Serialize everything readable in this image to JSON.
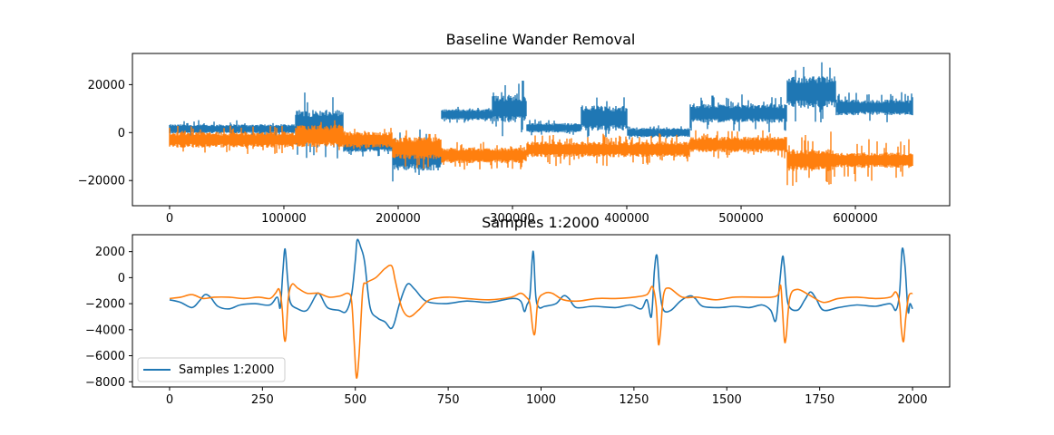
{
  "chart_data": [
    {
      "type": "line",
      "title": "Baseline Wander Removal",
      "xlabel": "",
      "ylabel": "",
      "xlim": [
        -32500,
        682500
      ],
      "ylim": [
        -30500,
        33000
      ],
      "x_ticks": [
        0,
        100000,
        200000,
        300000,
        400000,
        500000,
        600000
      ],
      "x_tick_labels": [
        "0",
        "100000",
        "200000",
        "300000",
        "400000",
        "500000",
        "600000"
      ],
      "y_ticks": [
        -20000,
        0,
        20000
      ],
      "y_tick_labels": [
        "−20000",
        "0",
        "20000"
      ],
      "grid": false,
      "series": [
        {
          "color": "#1f77b4",
          "segments": [
            {
              "x0": 0,
              "x1": 110000,
              "center": 1500,
              "amp": 1500,
              "spike": 3800
            },
            {
              "x0": 110000,
              "x1": 152000,
              "center": 3000,
              "amp": 5000,
              "spike": 14000
            },
            {
              "x0": 152000,
              "x1": 195000,
              "center": -5500,
              "amp": 2000,
              "spike": 4500
            },
            {
              "x0": 195000,
              "x1": 238000,
              "center": -10000,
              "amp": 4500,
              "spike": 12000
            },
            {
              "x0": 238000,
              "x1": 282000,
              "center": 7500,
              "amp": 1800,
              "spike": 3500
            },
            {
              "x0": 282000,
              "x1": 312000,
              "center": 10000,
              "amp": 4500,
              "spike": 12000
            },
            {
              "x0": 312000,
              "x1": 360000,
              "center": 2000,
              "amp": 1500,
              "spike": 3500
            },
            {
              "x0": 360000,
              "x1": 400000,
              "center": 6000,
              "amp": 4000,
              "spike": 9000
            },
            {
              "x0": 400000,
              "x1": 455000,
              "center": 0,
              "amp": 1500,
              "spike": 3000
            },
            {
              "x0": 455000,
              "x1": 540000,
              "center": 8000,
              "amp": 3000,
              "spike": 8000
            },
            {
              "x0": 540000,
              "x1": 583000,
              "center": 17000,
              "amp": 5000,
              "spike": 13000
            },
            {
              "x0": 583000,
              "x1": 650000,
              "center": 10500,
              "amp": 2500,
              "spike": 6500
            }
          ]
        },
        {
          "color": "#ff7f0e",
          "segments": [
            {
              "x0": 0,
              "x1": 110000,
              "center": -3000,
              "amp": 2500,
              "spike": 6000
            },
            {
              "x0": 110000,
              "x1": 152000,
              "center": -1500,
              "amp": 3500,
              "spike": 7000
            },
            {
              "x0": 152000,
              "x1": 195000,
              "center": -3000,
              "amp": 2500,
              "spike": 5000
            },
            {
              "x0": 195000,
              "x1": 238000,
              "center": -6500,
              "amp": 3500,
              "spike": 9000
            },
            {
              "x0": 238000,
              "x1": 312000,
              "center": -9500,
              "amp": 2500,
              "spike": 6000
            },
            {
              "x0": 312000,
              "x1": 455000,
              "center": -7000,
              "amp": 2500,
              "spike": 7000
            },
            {
              "x0": 455000,
              "x1": 540000,
              "center": -5000,
              "amp": 2500,
              "spike": 6000
            },
            {
              "x0": 540000,
              "x1": 583000,
              "center": -11500,
              "amp": 3500,
              "spike": 12000
            },
            {
              "x0": 583000,
              "x1": 650000,
              "center": -11500,
              "amp": 2500,
              "spike": 9000
            }
          ]
        }
      ]
    },
    {
      "type": "line",
      "title": "Samples 1:2000",
      "xlabel": "",
      "ylabel": "",
      "xlim": [
        -100,
        2100
      ],
      "ylim": [
        -8400,
        3300
      ],
      "x_ticks": [
        0,
        250,
        500,
        750,
        1000,
        1250,
        1500,
        1750,
        2000
      ],
      "x_tick_labels": [
        "0",
        "250",
        "500",
        "750",
        "1000",
        "1250",
        "1500",
        "1750",
        "2000"
      ],
      "y_ticks": [
        -8000,
        -6000,
        -4000,
        -2000,
        0,
        2000
      ],
      "y_tick_labels": [
        "−8000",
        "−6000",
        "−4000",
        "−2000",
        "0",
        "2000"
      ],
      "grid": false,
      "legend": {
        "placement": "lower-left",
        "entries": [
          {
            "label": "Samples 1:2000",
            "color": "#1f77b4"
          }
        ]
      },
      "series": [
        {
          "name": "Samples 1:2000",
          "color": "#1f77b4",
          "points": [
            [
              0,
              -1700
            ],
            [
              30,
              -1900
            ],
            [
              60,
              -2300
            ],
            [
              80,
              -1800
            ],
            [
              95,
              -1300
            ],
            [
              110,
              -1500
            ],
            [
              130,
              -2200
            ],
            [
              160,
              -2400
            ],
            [
              190,
              -2100
            ],
            [
              230,
              -2000
            ],
            [
              270,
              -2100
            ],
            [
              290,
              -1500
            ],
            [
              298,
              -2300
            ],
            [
              305,
              500
            ],
            [
              311,
              2200
            ],
            [
              318,
              -200
            ],
            [
              325,
              -1900
            ],
            [
              345,
              -2400
            ],
            [
              370,
              -2500
            ],
            [
              395,
              -1300
            ],
            [
              405,
              -1300
            ],
            [
              425,
              -2300
            ],
            [
              455,
              -2500
            ],
            [
              475,
              -2600
            ],
            [
              490,
              -1300
            ],
            [
              500,
              1300
            ],
            [
              505,
              2900
            ],
            [
              515,
              2300
            ],
            [
              525,
              1200
            ],
            [
              540,
              -2300
            ],
            [
              560,
              -3100
            ],
            [
              580,
              -3400
            ],
            [
              595,
              -3900
            ],
            [
              605,
              -3500
            ],
            [
              620,
              -1900
            ],
            [
              640,
              -500
            ],
            [
              660,
              -900
            ],
            [
              690,
              -1800
            ],
            [
              740,
              -2000
            ],
            [
              800,
              -1800
            ],
            [
              860,
              -1900
            ],
            [
              920,
              -1600
            ],
            [
              945,
              -1800
            ],
            [
              955,
              -2600
            ],
            [
              962,
              -2100
            ],
            [
              970,
              -1400
            ],
            [
              976,
              1400
            ],
            [
              980,
              1800
            ],
            [
              986,
              -1500
            ],
            [
              995,
              -2300
            ],
            [
              1010,
              -2200
            ],
            [
              1040,
              -2000
            ],
            [
              1060,
              -1400
            ],
            [
              1075,
              -1600
            ],
            [
              1095,
              -2300
            ],
            [
              1140,
              -2200
            ],
            [
              1200,
              -2300
            ],
            [
              1240,
              -2100
            ],
            [
              1270,
              -2400
            ],
            [
              1285,
              -1700
            ],
            [
              1297,
              -3000
            ],
            [
              1305,
              500
            ],
            [
              1312,
              1700
            ],
            [
              1320,
              -1100
            ],
            [
              1330,
              -2500
            ],
            [
              1350,
              -2500
            ],
            [
              1375,
              -1800
            ],
            [
              1400,
              -1400
            ],
            [
              1415,
              -1600
            ],
            [
              1435,
              -2200
            ],
            [
              1480,
              -2300
            ],
            [
              1520,
              -2200
            ],
            [
              1560,
              -2300
            ],
            [
              1595,
              -2100
            ],
            [
              1618,
              -2500
            ],
            [
              1632,
              -3300
            ],
            [
              1642,
              -500
            ],
            [
              1650,
              1600
            ],
            [
              1655,
              800
            ],
            [
              1665,
              -2000
            ],
            [
              1690,
              -2500
            ],
            [
              1710,
              -1700
            ],
            [
              1725,
              -1100
            ],
            [
              1740,
              -1600
            ],
            [
              1760,
              -2500
            ],
            [
              1800,
              -2300
            ],
            [
              1850,
              -2100
            ],
            [
              1900,
              -2200
            ],
            [
              1940,
              -2000
            ],
            [
              1955,
              -2500
            ],
            [
              1965,
              -1200
            ],
            [
              1972,
              2200
            ],
            [
              1980,
              800
            ],
            [
              1988,
              -2600
            ],
            [
              1993,
              -2000
            ],
            [
              2000,
              -2400
            ]
          ]
        },
        {
          "color": "#ff7f0e",
          "points": [
            [
              0,
              -1600
            ],
            [
              30,
              -1500
            ],
            [
              60,
              -1300
            ],
            [
              90,
              -1600
            ],
            [
              120,
              -1500
            ],
            [
              160,
              -1500
            ],
            [
              200,
              -1600
            ],
            [
              240,
              -1500
            ],
            [
              270,
              -1600
            ],
            [
              285,
              -1200
            ],
            [
              295,
              -900
            ],
            [
              303,
              -2300
            ],
            [
              308,
              -4500
            ],
            [
              313,
              -4600
            ],
            [
              320,
              -1500
            ],
            [
              330,
              -500
            ],
            [
              345,
              -800
            ],
            [
              370,
              -1200
            ],
            [
              400,
              -1200
            ],
            [
              430,
              -1500
            ],
            [
              460,
              -1400
            ],
            [
              480,
              -1200
            ],
            [
              490,
              -1800
            ],
            [
              497,
              -5000
            ],
            [
              503,
              -7700
            ],
            [
              510,
              -6000
            ],
            [
              520,
              -1000
            ],
            [
              530,
              -400
            ],
            [
              555,
              0
            ],
            [
              580,
              700
            ],
            [
              598,
              900
            ],
            [
              608,
              -300
            ],
            [
              625,
              -2300
            ],
            [
              645,
              -3000
            ],
            [
              670,
              -2500
            ],
            [
              700,
              -1700
            ],
            [
              750,
              -1500
            ],
            [
              800,
              -1600
            ],
            [
              860,
              -1700
            ],
            [
              920,
              -1500
            ],
            [
              945,
              -1200
            ],
            [
              960,
              -1500
            ],
            [
              970,
              -2000
            ],
            [
              978,
              -4000
            ],
            [
              984,
              -4200
            ],
            [
              992,
              -1800
            ],
            [
              1010,
              -1200
            ],
            [
              1030,
              -1200
            ],
            [
              1060,
              -1700
            ],
            [
              1100,
              -1800
            ],
            [
              1150,
              -1600
            ],
            [
              1200,
              -1600
            ],
            [
              1250,
              -1500
            ],
            [
              1285,
              -1300
            ],
            [
              1300,
              -700
            ],
            [
              1310,
              -2200
            ],
            [
              1316,
              -5100
            ],
            [
              1322,
              -4000
            ],
            [
              1330,
              -1300
            ],
            [
              1345,
              -800
            ],
            [
              1380,
              -1500
            ],
            [
              1420,
              -1500
            ],
            [
              1470,
              -1700
            ],
            [
              1520,
              -1500
            ],
            [
              1580,
              -1500
            ],
            [
              1620,
              -1500
            ],
            [
              1638,
              -1300
            ],
            [
              1645,
              -600
            ],
            [
              1650,
              -2500
            ],
            [
              1655,
              -4800
            ],
            [
              1660,
              -4500
            ],
            [
              1670,
              -1500
            ],
            [
              1690,
              -900
            ],
            [
              1720,
              -1300
            ],
            [
              1760,
              -1900
            ],
            [
              1800,
              -1600
            ],
            [
              1850,
              -1500
            ],
            [
              1900,
              -1600
            ],
            [
              1940,
              -1500
            ],
            [
              1955,
              -1100
            ],
            [
              1965,
              -2000
            ],
            [
              1970,
              -4000
            ],
            [
              1976,
              -4900
            ],
            [
              1982,
              -3000
            ],
            [
              1990,
              -1400
            ],
            [
              2000,
              -1200
            ]
          ]
        }
      ]
    }
  ]
}
